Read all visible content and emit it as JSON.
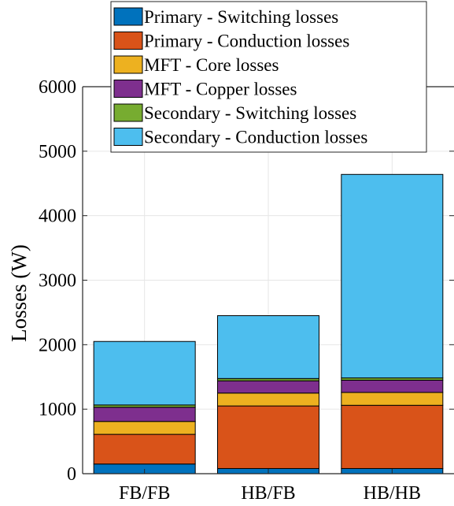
{
  "chart_data": {
    "type": "bar",
    "stacked": true,
    "categories": [
      "FB/FB",
      "HB/FB",
      "HB/HB"
    ],
    "ylabel": "Losses (W)",
    "xlabel": "",
    "ylim": [
      0,
      6000
    ],
    "yticks": [
      0,
      1000,
      2000,
      3000,
      4000,
      5000,
      6000
    ],
    "grid": true,
    "legend_position": "top",
    "series": [
      {
        "name": "Primary - Switching losses",
        "color": "#0072BD",
        "values": [
          150,
          80,
          80
        ]
      },
      {
        "name": "Primary - Conduction losses",
        "color": "#D95319",
        "values": [
          460,
          970,
          980
        ]
      },
      {
        "name": "MFT - Core losses",
        "color": "#EDB120",
        "values": [
          200,
          200,
          200
        ]
      },
      {
        "name": "MFT - Copper losses",
        "color": "#7E2F8E",
        "values": [
          220,
          190,
          190
        ]
      },
      {
        "name": "Secondary - Switching losses",
        "color": "#77AC30",
        "values": [
          35,
          35,
          35
        ]
      },
      {
        "name": "Secondary - Conduction losses",
        "color": "#4DBEEE",
        "values": [
          985,
          975,
          3155
        ]
      }
    ]
  }
}
